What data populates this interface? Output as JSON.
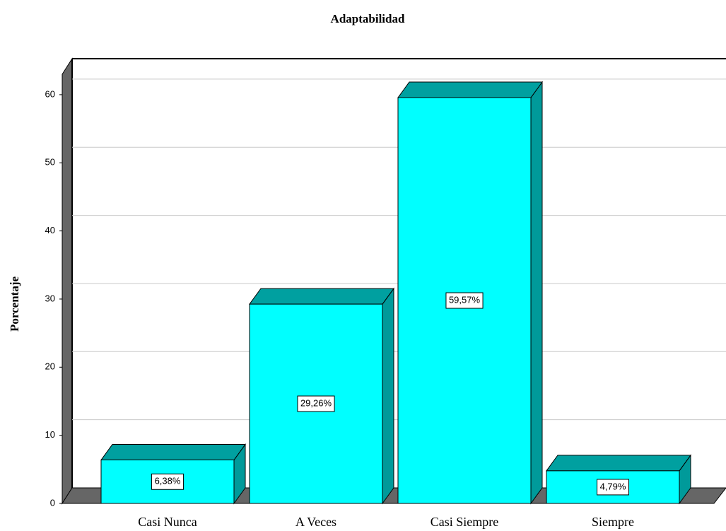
{
  "chart_data": {
    "type": "bar3d",
    "title": "Adaptabilidad",
    "y_label": "Porcentaje",
    "categories": [
      "Casi Nunca",
      "A Veces",
      "Casi Siempre",
      "Siempre"
    ],
    "values": [
      6.38,
      29.26,
      59.57,
      4.79
    ],
    "value_labels": [
      "6,38%",
      "29,26%",
      "59,57%",
      "4,79%"
    ],
    "color": "#00ffff",
    "ylim": [
      0,
      63
    ],
    "yticks": [
      0,
      10,
      20,
      30,
      40,
      50,
      60
    ],
    "grid": true
  }
}
